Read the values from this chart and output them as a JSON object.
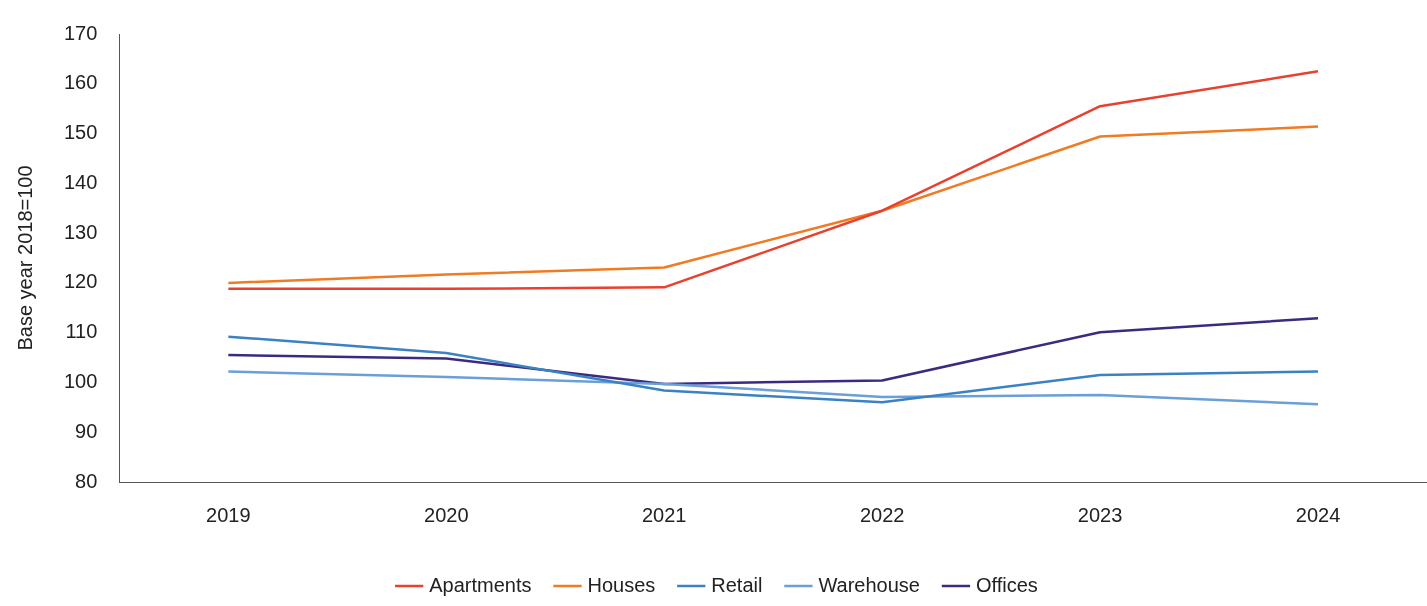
{
  "chart_data": {
    "type": "line",
    "ylabel": "Base year 2018=100",
    "categories": [
      "2019",
      "2020",
      "2021",
      "2022",
      "2023",
      "2024"
    ],
    "series": [
      {
        "name": "Apartments",
        "color": "#e8412f",
        "values": [
          118.8,
          118.8,
          119.1,
          134.5,
          155.5,
          162.5
        ]
      },
      {
        "name": "Houses",
        "color": "#f07b22",
        "values": [
          120.0,
          121.7,
          123.1,
          134.5,
          149.4,
          151.4
        ]
      },
      {
        "name": "Retail",
        "color": "#3a82c4",
        "values": [
          109.2,
          105.9,
          98.4,
          96.0,
          101.5,
          102.2
        ]
      },
      {
        "name": "Warehouse",
        "color": "#6a9fd8",
        "values": [
          102.2,
          101.1,
          99.7,
          97.1,
          97.5,
          95.6
        ]
      },
      {
        "name": "Offices",
        "color": "#3d2a80",
        "values": [
          105.5,
          104.8,
          99.7,
          100.4,
          110.1,
          112.9
        ]
      }
    ],
    "ylim": [
      80,
      170
    ],
    "yticks": [
      80,
      90,
      100,
      110,
      120,
      130,
      140,
      150,
      160,
      170
    ],
    "grid": false,
    "legend": "bottom",
    "marker": "none",
    "line_style": "solid"
  }
}
